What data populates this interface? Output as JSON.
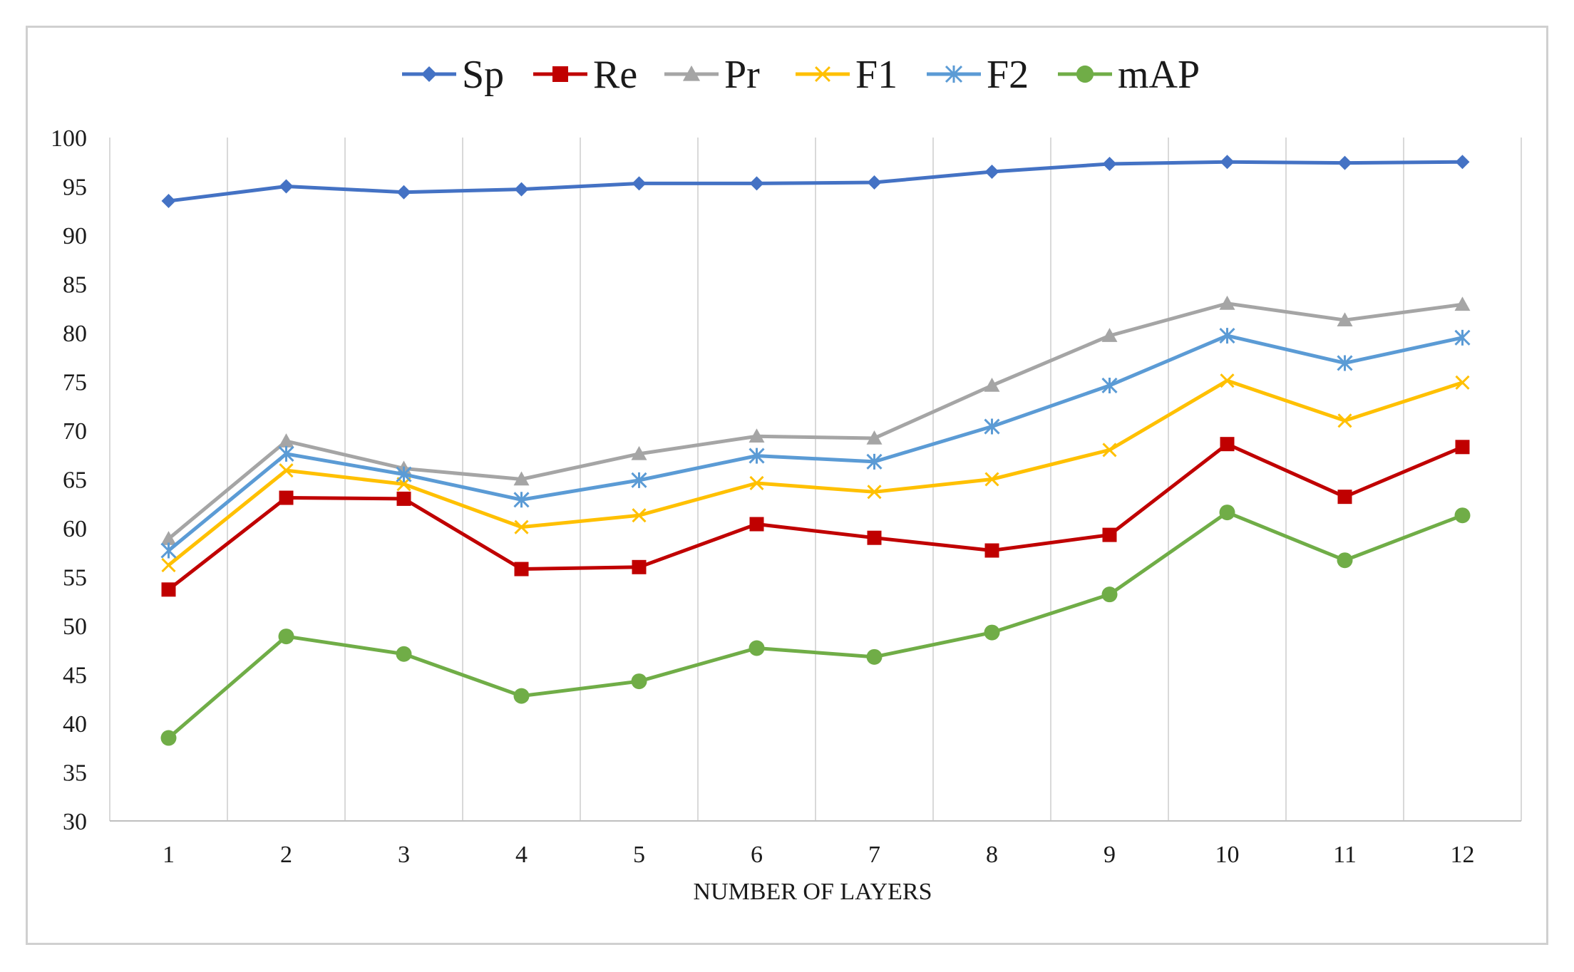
{
  "chart_data": {
    "type": "line",
    "title": "",
    "xlabel": "NUMBER OF LAYERS",
    "ylabel": "",
    "categories": [
      "1",
      "2",
      "3",
      "4",
      "5",
      "6",
      "7",
      "8",
      "9",
      "10",
      "11",
      "12"
    ],
    "ylim": [
      30,
      100
    ],
    "yticks": [
      "30",
      "35",
      "40",
      "45",
      "50",
      "55",
      "60",
      "65",
      "70",
      "75",
      "80",
      "85",
      "90",
      "95",
      "100"
    ],
    "grid": "vertical",
    "legend": "top-center",
    "series": [
      {
        "name": "Sp",
        "color": "#4472C4",
        "marker": "diamond",
        "values": [
          93.5,
          95.0,
          94.4,
          94.7,
          95.3,
          95.3,
          95.4,
          96.5,
          97.3,
          97.5,
          97.4,
          97.5
        ]
      },
      {
        "name": "Re",
        "color": "#C00000",
        "marker": "square",
        "values": [
          53.7,
          63.1,
          63.0,
          55.8,
          56.0,
          60.4,
          59.0,
          57.7,
          59.3,
          68.6,
          63.2,
          68.3
        ]
      },
      {
        "name": "Pr",
        "color": "#A5A5A5",
        "marker": "triangle",
        "values": [
          58.9,
          68.9,
          66.1,
          65.0,
          67.6,
          69.4,
          69.2,
          74.6,
          79.7,
          83.0,
          81.3,
          82.9
        ]
      },
      {
        "name": "F1",
        "color": "#FFC000",
        "marker": "x",
        "values": [
          56.2,
          65.9,
          64.5,
          60.1,
          61.3,
          64.6,
          63.7,
          65.0,
          68.0,
          75.1,
          71.0,
          74.9
        ]
      },
      {
        "name": "F2",
        "color": "#5B9BD5",
        "marker": "asterisk",
        "values": [
          57.7,
          67.6,
          65.5,
          62.9,
          64.9,
          67.4,
          66.8,
          70.4,
          74.6,
          79.7,
          76.9,
          79.5
        ]
      },
      {
        "name": "mAP",
        "color": "#70AD47",
        "marker": "circle",
        "values": [
          38.5,
          48.9,
          47.1,
          42.8,
          44.3,
          47.7,
          46.8,
          49.3,
          53.2,
          61.6,
          56.7,
          61.3
        ]
      }
    ]
  }
}
